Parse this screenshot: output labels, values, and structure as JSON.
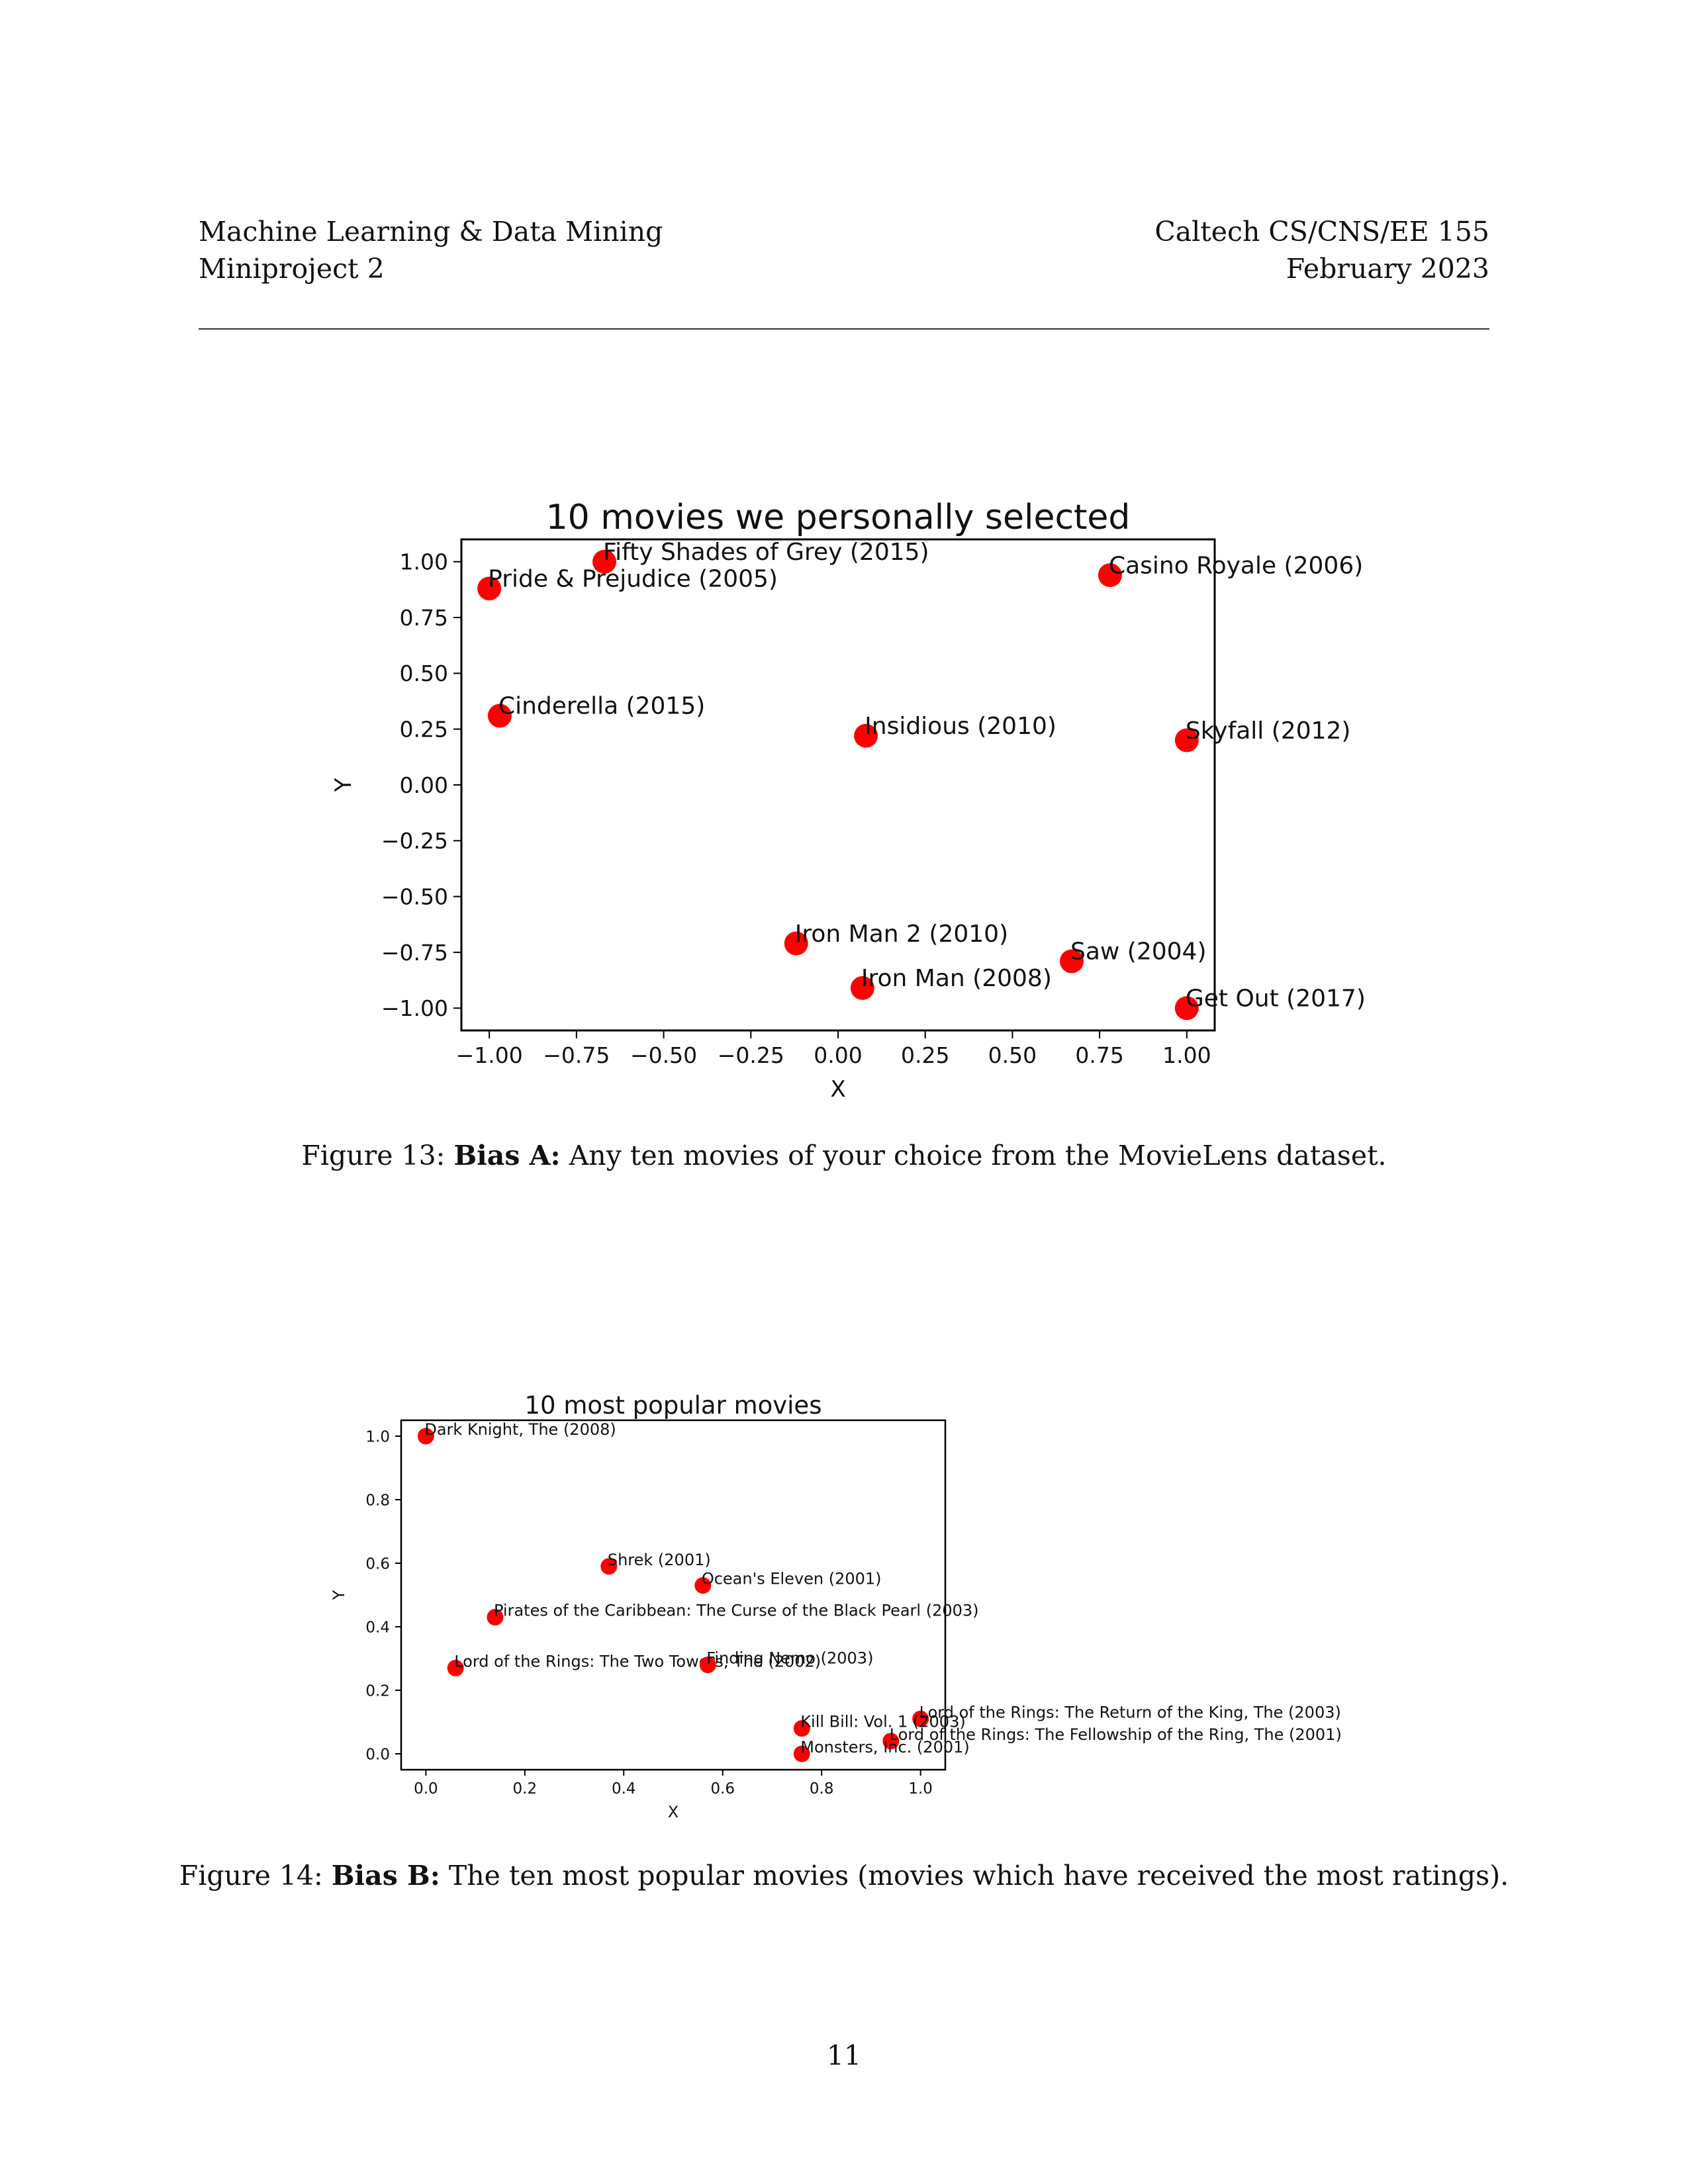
{
  "header": {
    "left_line1": "Machine Learning & Data Mining",
    "left_line2": "Miniproject 2",
    "right_line1": "Caltech CS/CNS/EE 155",
    "right_line2": "February 2023"
  },
  "figure13": {
    "label": "Figure 13:",
    "bold": "Bias A:",
    "text": "Any ten movies of your choice from the MovieLens dataset."
  },
  "figure14": {
    "label": "Figure 14:",
    "bold": "Bias B:",
    "text": "The ten most popular movies (movies which have received the most ratings)."
  },
  "page_number": "11",
  "colors": {
    "point": "#ff0000"
  },
  "chart_data": [
    {
      "type": "scatter",
      "title": "10 movies we personally selected",
      "xlabel": "X",
      "ylabel": "Y",
      "xlim": [
        -1.08,
        1.08
      ],
      "ylim": [
        -1.1,
        1.1
      ],
      "xticks": [
        -1.0,
        -0.75,
        -0.5,
        -0.25,
        0.0,
        0.25,
        0.5,
        0.75,
        1.0
      ],
      "xtick_labels": [
        "−1.00",
        "−0.75",
        "−0.50",
        "−0.25",
        "0.00",
        "0.25",
        "0.50",
        "0.75",
        "1.00"
      ],
      "yticks": [
        1.0,
        0.75,
        0.5,
        0.25,
        0.0,
        -0.25,
        -0.5,
        -0.75,
        -1.0
      ],
      "ytick_labels": [
        "1.00",
        "0.75",
        "0.50",
        "0.25",
        "0.00",
        "−0.25",
        "−0.50",
        "−0.75",
        "−1.00"
      ],
      "grid": false,
      "points": [
        {
          "label": "Fifty Shades of Grey (2015)",
          "x": -0.67,
          "y": 1.0
        },
        {
          "label": "Pride & Prejudice (2005)",
          "x": -1.0,
          "y": 0.88
        },
        {
          "label": "Casino Royale (2006)",
          "x": 0.78,
          "y": 0.94
        },
        {
          "label": "Cinderella (2015)",
          "x": -0.97,
          "y": 0.31
        },
        {
          "label": "Insidious (2010)",
          "x": 0.08,
          "y": 0.22
        },
        {
          "label": "Skyfall (2012)",
          "x": 1.0,
          "y": 0.2
        },
        {
          "label": "Iron Man 2 (2010)",
          "x": -0.12,
          "y": -0.71
        },
        {
          "label": "Saw (2004)",
          "x": 0.67,
          "y": -0.79
        },
        {
          "label": "Iron Man (2008)",
          "x": 0.07,
          "y": -0.91
        },
        {
          "label": "Get Out (2017)",
          "x": 1.0,
          "y": -1.0
        }
      ]
    },
    {
      "type": "scatter",
      "title": "10 most popular movies",
      "xlabel": "X",
      "ylabel": "Y",
      "xlim": [
        -0.05,
        1.05
      ],
      "ylim": [
        -0.05,
        1.05
      ],
      "xticks": [
        0.0,
        0.2,
        0.4,
        0.6,
        0.8,
        1.0
      ],
      "xtick_labels": [
        "0.0",
        "0.2",
        "0.4",
        "0.6",
        "0.8",
        "1.0"
      ],
      "yticks": [
        1.0,
        0.8,
        0.6,
        0.4,
        0.2,
        0.0
      ],
      "ytick_labels": [
        "1.0",
        "0.8",
        "0.6",
        "0.4",
        "0.2",
        "0.0"
      ],
      "grid": false,
      "points": [
        {
          "label": "Dark Knight, The (2008)",
          "x": 0.0,
          "y": 1.0
        },
        {
          "label": "Shrek (2001)",
          "x": 0.37,
          "y": 0.59
        },
        {
          "label": "Ocean's Eleven (2001)",
          "x": 0.56,
          "y": 0.53
        },
        {
          "label": "Pirates of the Caribbean: The Curse of the Black Pearl (2003)",
          "x": 0.14,
          "y": 0.43
        },
        {
          "label": "Lord of the Rings: The Two Towers, The (2002)",
          "x": 0.06,
          "y": 0.27
        },
        {
          "label": "Finding Nemo (2003)",
          "x": 0.57,
          "y": 0.28
        },
        {
          "label": "Lord of the Rings: The Return of the King, The (2003)",
          "x": 1.0,
          "y": 0.11
        },
        {
          "label": "Kill Bill: Vol. 1 (2003)",
          "x": 0.76,
          "y": 0.08
        },
        {
          "label": "Lord of the Rings: The Fellowship of the Ring, The (2001)",
          "x": 0.94,
          "y": 0.04
        },
        {
          "label": "Monsters, Inc. (2001)",
          "x": 0.76,
          "y": 0.0
        }
      ]
    }
  ]
}
